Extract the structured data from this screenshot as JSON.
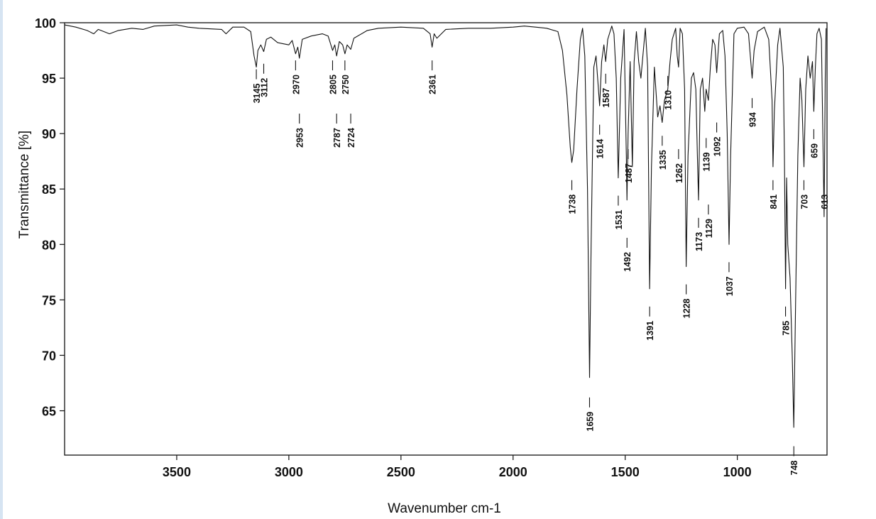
{
  "chart_data": {
    "type": "line",
    "title": "",
    "xlabel": "Wavenumber cm-1",
    "ylabel": "Transmittance [%]",
    "xlim": [
      4000,
      600
    ],
    "ylim": [
      61,
      100
    ],
    "x_ticks": [
      3500,
      3000,
      2500,
      2000,
      1500,
      1000
    ],
    "y_ticks": [
      65,
      70,
      75,
      80,
      85,
      90,
      95,
      100
    ],
    "grid": false,
    "series": [
      {
        "points": [
          [
            4000,
            99.8
          ],
          [
            3950,
            99.6
          ],
          [
            3900,
            99.3
          ],
          [
            3870,
            99.0
          ],
          [
            3850,
            99.4
          ],
          [
            3800,
            99.0
          ],
          [
            3760,
            99.3
          ],
          [
            3700,
            99.5
          ],
          [
            3650,
            99.4
          ],
          [
            3600,
            99.7
          ],
          [
            3500,
            99.8
          ],
          [
            3450,
            99.6
          ],
          [
            3400,
            99.5
          ],
          [
            3300,
            99.4
          ],
          [
            3280,
            99.0
          ],
          [
            3250,
            99.6
          ],
          [
            3200,
            99.6
          ],
          [
            3170,
            99.2
          ],
          [
            3155,
            97.0
          ],
          [
            3145,
            96.0
          ],
          [
            3138,
            97.5
          ],
          [
            3125,
            98.0
          ],
          [
            3112,
            97.4
          ],
          [
            3100,
            98.5
          ],
          [
            3080,
            98.7
          ],
          [
            3050,
            98.2
          ],
          [
            3000,
            98.0
          ],
          [
            2985,
            98.4
          ],
          [
            2970,
            97.2
          ],
          [
            2960,
            97.8
          ],
          [
            2953,
            96.8
          ],
          [
            2940,
            98.5
          ],
          [
            2900,
            98.8
          ],
          [
            2850,
            99.0
          ],
          [
            2825,
            98.8
          ],
          [
            2805,
            97.5
          ],
          [
            2795,
            98.0
          ],
          [
            2787,
            97.0
          ],
          [
            2775,
            98.3
          ],
          [
            2760,
            98.0
          ],
          [
            2750,
            97.2
          ],
          [
            2740,
            98.0
          ],
          [
            2724,
            97.6
          ],
          [
            2710,
            98.6
          ],
          [
            2650,
            99.3
          ],
          [
            2600,
            99.5
          ],
          [
            2500,
            99.6
          ],
          [
            2400,
            99.5
          ],
          [
            2370,
            99.0
          ],
          [
            2361,
            97.8
          ],
          [
            2352,
            99.0
          ],
          [
            2340,
            98.6
          ],
          [
            2300,
            99.4
          ],
          [
            2200,
            99.5
          ],
          [
            2100,
            99.5
          ],
          [
            2000,
            99.6
          ],
          [
            1950,
            99.7
          ],
          [
            1900,
            99.6
          ],
          [
            1850,
            99.5
          ],
          [
            1800,
            99.2
          ],
          [
            1780,
            97.5
          ],
          [
            1760,
            93.5
          ],
          [
            1745,
            88.8
          ],
          [
            1738,
            87.4
          ],
          [
            1730,
            88.5
          ],
          [
            1715,
            94.0
          ],
          [
            1700,
            98.5
          ],
          [
            1690,
            99.5
          ],
          [
            1680,
            97.0
          ],
          [
            1668,
            85.0
          ],
          [
            1659,
            68.0
          ],
          [
            1652,
            80.0
          ],
          [
            1640,
            96.0
          ],
          [
            1630,
            97.0
          ],
          [
            1614,
            92.5
          ],
          [
            1605,
            96.5
          ],
          [
            1595,
            98.0
          ],
          [
            1587,
            96.5
          ],
          [
            1578,
            98.5
          ],
          [
            1560,
            99.7
          ],
          [
            1550,
            99.0
          ],
          [
            1540,
            95.0
          ],
          [
            1531,
            86.0
          ],
          [
            1520,
            95.0
          ],
          [
            1505,
            99.4
          ],
          [
            1495,
            88.0
          ],
          [
            1492,
            84.0
          ],
          [
            1487,
            90.0
          ],
          [
            1478,
            96.5
          ],
          [
            1468,
            87.0
          ],
          [
            1460,
            96.5
          ],
          [
            1450,
            99.2
          ],
          [
            1440,
            96.5
          ],
          [
            1430,
            95.0
          ],
          [
            1410,
            99.5
          ],
          [
            1400,
            96.0
          ],
          [
            1391,
            76.0
          ],
          [
            1383,
            87.0
          ],
          [
            1370,
            96.0
          ],
          [
            1355,
            91.5
          ],
          [
            1345,
            92.5
          ],
          [
            1335,
            91.0
          ],
          [
            1325,
            93.0
          ],
          [
            1310,
            94.0
          ],
          [
            1300,
            96.5
          ],
          [
            1290,
            98.5
          ],
          [
            1275,
            99.5
          ],
          [
            1268,
            97.0
          ],
          [
            1262,
            96.0
          ],
          [
            1255,
            99.5
          ],
          [
            1245,
            99.0
          ],
          [
            1235,
            94.0
          ],
          [
            1228,
            78.0
          ],
          [
            1220,
            88.0
          ],
          [
            1205,
            95.0
          ],
          [
            1195,
            95.5
          ],
          [
            1185,
            94.0
          ],
          [
            1178,
            88.0
          ],
          [
            1173,
            84.0
          ],
          [
            1165,
            94.0
          ],
          [
            1155,
            95.0
          ],
          [
            1145,
            92.0
          ],
          [
            1139,
            94.0
          ],
          [
            1129,
            93.0
          ],
          [
            1120,
            96.0
          ],
          [
            1110,
            98.5
          ],
          [
            1100,
            98.0
          ],
          [
            1092,
            95.5
          ],
          [
            1080,
            99.0
          ],
          [
            1065,
            99.3
          ],
          [
            1055,
            97.0
          ],
          [
            1045,
            90.0
          ],
          [
            1037,
            80.0
          ],
          [
            1030,
            88.0
          ],
          [
            1015,
            99.0
          ],
          [
            1000,
            99.5
          ],
          [
            970,
            99.6
          ],
          [
            950,
            99.0
          ],
          [
            940,
            96.5
          ],
          [
            934,
            95.0
          ],
          [
            925,
            97.5
          ],
          [
            910,
            99.2
          ],
          [
            880,
            99.6
          ],
          [
            860,
            98.5
          ],
          [
            845,
            93.0
          ],
          [
            841,
            87.0
          ],
          [
            835,
            92.0
          ],
          [
            820,
            98.0
          ],
          [
            810,
            99.5
          ],
          [
            795,
            96.0
          ],
          [
            790,
            88.0
          ],
          [
            785,
            76.0
          ],
          [
            780,
            86.0
          ],
          [
            775,
            80.0
          ],
          [
            765,
            77.0
          ],
          [
            755,
            70.0
          ],
          [
            748,
            63.5
          ],
          [
            740,
            75.0
          ],
          [
            730,
            88.0
          ],
          [
            720,
            95.0
          ],
          [
            712,
            93.0
          ],
          [
            703,
            87.0
          ],
          [
            695,
            94.0
          ],
          [
            685,
            97.0
          ],
          [
            675,
            95.0
          ],
          [
            665,
            96.5
          ],
          [
            659,
            92.0
          ],
          [
            652,
            96.0
          ],
          [
            645,
            99.0
          ],
          [
            635,
            99.5
          ],
          [
            625,
            98.5
          ],
          [
            613,
            82.5
          ],
          [
            608,
            95.0
          ],
          [
            604,
            99.5
          ]
        ]
      }
    ],
    "peak_labels": [
      {
        "text": "3145",
        "wavenumber": 3145,
        "level": 95.8
      },
      {
        "text": "3112",
        "wavenumber": 3112,
        "level": 96.3
      },
      {
        "text": "2970",
        "wavenumber": 2970,
        "level": 96.6
      },
      {
        "text": "2953",
        "wavenumber": 2953,
        "level": 91.8
      },
      {
        "text": "2805",
        "wavenumber": 2805,
        "level": 96.6
      },
      {
        "text": "2787",
        "wavenumber": 2787,
        "level": 91.8
      },
      {
        "text": "2750",
        "wavenumber": 2750,
        "level": 96.6
      },
      {
        "text": "2724",
        "wavenumber": 2724,
        "level": 91.8
      },
      {
        "text": "2361",
        "wavenumber": 2361,
        "level": 96.6
      },
      {
        "text": "1738",
        "wavenumber": 1738,
        "level": 85.8
      },
      {
        "text": "1659",
        "wavenumber": 1659,
        "level": 66.2
      },
      {
        "text": "1614",
        "wavenumber": 1614,
        "level": 90.8
      },
      {
        "text": "1587",
        "wavenumber": 1587,
        "level": 95.4
      },
      {
        "text": "1531",
        "wavenumber": 1531,
        "level": 84.4
      },
      {
        "text": "1492",
        "wavenumber": 1492,
        "level": 80.6
      },
      {
        "text": "1487",
        "wavenumber": 1487,
        "level": 88.6
      },
      {
        "text": "1391",
        "wavenumber": 1391,
        "level": 74.4
      },
      {
        "text": "1335",
        "wavenumber": 1335,
        "level": 89.8
      },
      {
        "text": "1310",
        "wavenumber": 1310,
        "level": 95.2
      },
      {
        "text": "1262",
        "wavenumber": 1262,
        "level": 88.6
      },
      {
        "text": "1228",
        "wavenumber": 1228,
        "level": 76.4
      },
      {
        "text": "1173",
        "wavenumber": 1173,
        "level": 82.4
      },
      {
        "text": "1139",
        "wavenumber": 1139,
        "level": 89.6
      },
      {
        "text": "1129",
        "wavenumber": 1129,
        "level": 83.6
      },
      {
        "text": "1092",
        "wavenumber": 1092,
        "level": 91.0
      },
      {
        "text": "1037",
        "wavenumber": 1037,
        "level": 78.4
      },
      {
        "text": "934",
        "wavenumber": 934,
        "level": 93.2
      },
      {
        "text": "841",
        "wavenumber": 841,
        "level": 85.8
      },
      {
        "text": "785",
        "wavenumber": 785,
        "level": 74.4
      },
      {
        "text": "748",
        "wavenumber": 748,
        "level": 61.8
      },
      {
        "text": "703",
        "wavenumber": 703,
        "level": 85.8
      },
      {
        "text": "659",
        "wavenumber": 659,
        "level": 90.4
      },
      {
        "text": "613",
        "wavenumber": 613,
        "level": 85.8
      }
    ]
  }
}
